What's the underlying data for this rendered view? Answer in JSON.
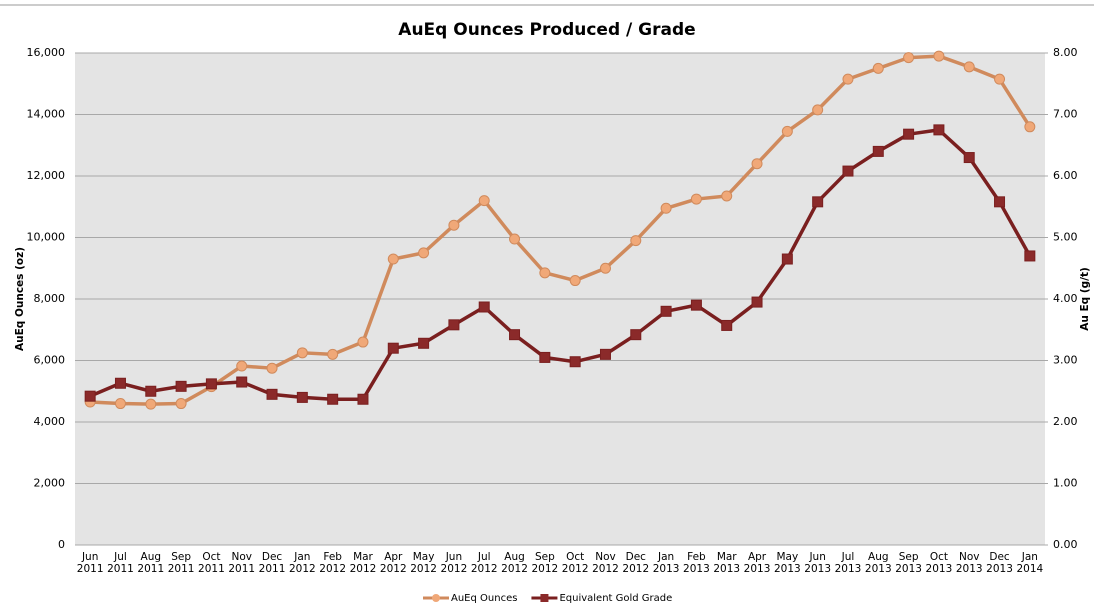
{
  "chart_data": {
    "type": "line",
    "title": "AuEq Ounces Produced / Grade",
    "y_label": "AuEq Ounces (oz)",
    "y2_label": "Au Eq (g/t)",
    "categories": [
      "Jun 2011",
      "Jul 2011",
      "Aug 2011",
      "Sep 2011",
      "Oct 2011",
      "Nov 2011",
      "Dec 2011",
      "Jan 2012",
      "Feb 2012",
      "Mar 2012",
      "Apr 2012",
      "May 2012",
      "Jun 2012",
      "Jul 2012",
      "Aug 2012",
      "Sep 2012",
      "Oct 2012",
      "Nov 2012",
      "Dec 2012",
      "Jan 2013",
      "Feb 2013",
      "Mar 2013",
      "Apr 2013",
      "May 2013",
      "Jun 2013",
      "Jul 2013",
      "Aug 2013",
      "Sep 2013",
      "Oct 2013",
      "Nov 2013",
      "Dec 2013",
      "Jan 2014"
    ],
    "series": [
      {
        "name": "AuEq Ounces",
        "color": "#d08a5c",
        "marker_color": "#f0a878",
        "marker": "circle",
        "values": [
          4650,
          4600,
          4580,
          4600,
          5150,
          5820,
          5750,
          6250,
          6200,
          6600,
          9300,
          9500,
          10400,
          11200,
          9950,
          8850,
          8600,
          9000,
          9900,
          10950,
          11250,
          11350,
          12400,
          13450,
          14150,
          15150,
          15500,
          15850,
          15900,
          15550,
          15150,
          13600
        ]
      },
      {
        "name": "Equivalent Gold Grade",
        "color": "#7a1f1f",
        "marker_color": "#8b2a2a",
        "marker": "square",
        "axis": "y2",
        "values": [
          2.42,
          2.63,
          2.5,
          2.58,
          2.62,
          2.65,
          2.45,
          2.4,
          2.37,
          2.37,
          3.2,
          3.28,
          3.58,
          3.87,
          3.42,
          3.05,
          2.98,
          3.1,
          3.42,
          3.8,
          3.9,
          3.57,
          3.95,
          4.65,
          5.58,
          6.08,
          6.4,
          6.68,
          6.75,
          6.3,
          5.58,
          4.7
        ]
      }
    ],
    "ylim": [
      0,
      16000
    ],
    "yticks": [
      0,
      {
        "value": 2000,
        "label": "2,000"
      },
      {
        "value": 4000,
        "label": "4,000"
      },
      {
        "value": 6000,
        "label": "6,000"
      },
      {
        "value": 8000,
        "label": "8,000"
      },
      {
        "value": 10000,
        "label": "10,000"
      },
      {
        "value": 12000,
        "label": "12,000"
      },
      {
        "value": 14000,
        "label": "14,000"
      },
      {
        "value": 16000,
        "label": "16,000"
      }
    ],
    "y2lim": [
      0,
      8
    ],
    "y2ticks": [
      {
        "value": 0,
        "label": "0.00"
      },
      {
        "value": 1,
        "label": "1.00"
      },
      {
        "value": 2,
        "label": "2.00"
      },
      {
        "value": 3,
        "label": "3.00"
      },
      {
        "value": 4,
        "label": "4.00"
      },
      {
        "value": 5,
        "label": "5.00"
      },
      {
        "value": 6,
        "label": "6.00"
      },
      {
        "value": 7,
        "label": "7.00"
      },
      {
        "value": 8,
        "label": "8.00"
      }
    ],
    "grid": true,
    "legend": "bottom"
  }
}
